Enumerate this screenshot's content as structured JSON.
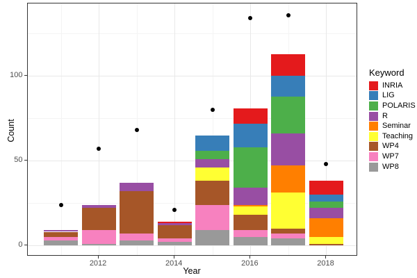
{
  "chart_data": {
    "type": "bar",
    "stacked": true,
    "title": "",
    "xlabel": "Year",
    "ylabel": "Count",
    "categories": [
      2011,
      2012,
      2013,
      2014,
      2015,
      2016,
      2017,
      2018
    ],
    "x_tick_labels": [
      "2012",
      "2014",
      "2016",
      "2018"
    ],
    "x_tick_indices": [
      1,
      3,
      5,
      7
    ],
    "y_ticks": [
      0,
      50,
      100
    ],
    "y_minor_gridlines": [
      25,
      75,
      125
    ],
    "ylim": [
      -6.5,
      143
    ],
    "grid": true,
    "legend": {
      "title": "Keyword",
      "position": "right"
    },
    "series": [
      {
        "name": "INRIA",
        "color": "#E41A1C",
        "values": [
          0,
          0,
          0,
          1,
          0,
          9,
          13,
          8
        ]
      },
      {
        "name": "LIG",
        "color": "#377EB8",
        "values": [
          0,
          0,
          0,
          0,
          9,
          14,
          12,
          4
        ]
      },
      {
        "name": "POLARIS",
        "color": "#4DAF4A",
        "values": [
          0,
          0,
          0,
          0,
          5,
          24,
          22,
          4
        ]
      },
      {
        "name": "R",
        "color": "#984EA3",
        "values": [
          1,
          2,
          5,
          1,
          5,
          10,
          19,
          6
        ]
      },
      {
        "name": "Seminar",
        "color": "#FF7F00",
        "values": [
          0,
          0,
          0,
          0,
          0,
          1,
          16,
          11
        ]
      },
      {
        "name": "Teaching",
        "color": "#FFFF33",
        "values": [
          0,
          0,
          0,
          0,
          8,
          5,
          21,
          4
        ]
      },
      {
        "name": "WP4",
        "color": "#A65628",
        "values": [
          3,
          13,
          25,
          8,
          14,
          9,
          3,
          1
        ]
      },
      {
        "name": "WP7",
        "color": "#F781BF",
        "values": [
          2,
          8,
          4,
          2,
          15,
          4,
          3,
          0
        ]
      },
      {
        "name": "WP8",
        "color": "#999999",
        "values": [
          3,
          1,
          3,
          2,
          9,
          5,
          4,
          0
        ]
      }
    ],
    "stack_order_bottom_to_top": [
      "WP8",
      "WP7",
      "WP4",
      "Teaching",
      "Seminar",
      "R",
      "POLARIS",
      "LIG",
      "INRIA"
    ],
    "points": {
      "shape": "circle",
      "color": "#000000",
      "values": [
        24,
        57,
        68,
        21,
        80,
        134,
        136,
        48
      ]
    },
    "bar_totals": [
      9,
      24,
      37,
      14,
      65,
      81,
      113,
      38
    ]
  }
}
